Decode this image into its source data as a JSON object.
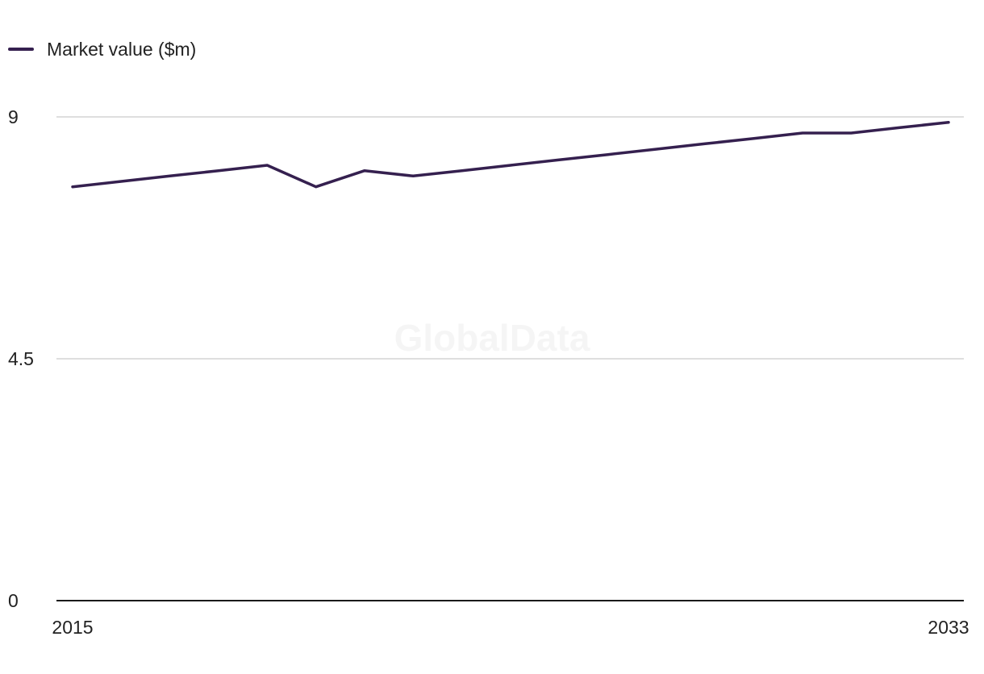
{
  "legend": {
    "label": "Market value ($m)"
  },
  "watermark": "GlobalData",
  "colors": {
    "series": "#35204f",
    "grid": "#d4d4d4",
    "axis": "#1a1a1a"
  },
  "chart_data": {
    "type": "line",
    "x": [
      2015,
      2016,
      2017,
      2018,
      2019,
      2020,
      2021,
      2022,
      2023,
      2024,
      2025,
      2026,
      2027,
      2028,
      2029,
      2030,
      2031,
      2032,
      2033
    ],
    "series": [
      {
        "name": "Market value ($m)",
        "values": [
          7.7,
          7.8,
          7.9,
          8.0,
          8.1,
          7.7,
          8.0,
          7.9,
          8.0,
          8.1,
          8.2,
          8.3,
          8.4,
          8.5,
          8.6,
          8.7,
          8.7,
          8.8,
          8.9
        ]
      }
    ],
    "x_ticks": [
      "2015",
      "2033"
    ],
    "y_ticks": [
      "0",
      "4.5",
      "9"
    ],
    "ylim": [
      0,
      9
    ],
    "grid": true,
    "legend_position": "top-left"
  }
}
